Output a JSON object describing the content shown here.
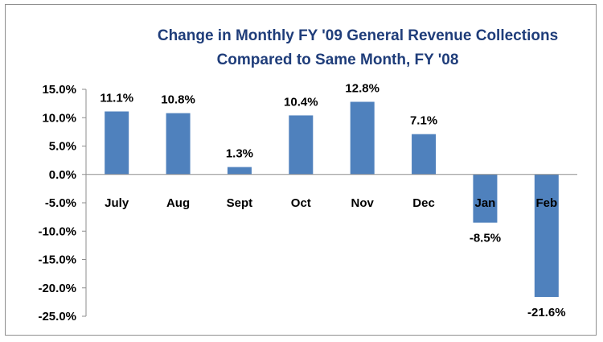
{
  "chart_data": {
    "type": "bar",
    "title_line1": "Change in Monthly FY '09 General Revenue Collections",
    "title_line2": "Compared to Same Month,  FY '08",
    "xlabel": "",
    "ylabel": "",
    "categories": [
      "July",
      "Aug",
      "Sept",
      "Oct",
      "Nov",
      "Dec",
      "Jan",
      "Feb"
    ],
    "values": [
      11.1,
      10.8,
      1.3,
      10.4,
      12.8,
      7.1,
      -8.5,
      -21.6
    ],
    "data_labels": [
      "11.1%",
      "10.8%",
      "1.3%",
      "10.4%",
      "12.8%",
      "7.1%",
      "-8.5%",
      "-21.6%"
    ],
    "ylim": [
      -25,
      15
    ],
    "yticks": [
      15,
      10,
      5,
      0,
      -5,
      -10,
      -15,
      -20,
      -25
    ],
    "ytick_labels": [
      "15.0%",
      "10.0%",
      "5.0%",
      "0.0%",
      "-5.0%",
      "-10.0%",
      "-15.0%",
      "-20.0%",
      "-25.0%"
    ],
    "bar_color": "#4f81bd",
    "title_color": "#1f3d7a",
    "grid": false,
    "legend": "none"
  }
}
